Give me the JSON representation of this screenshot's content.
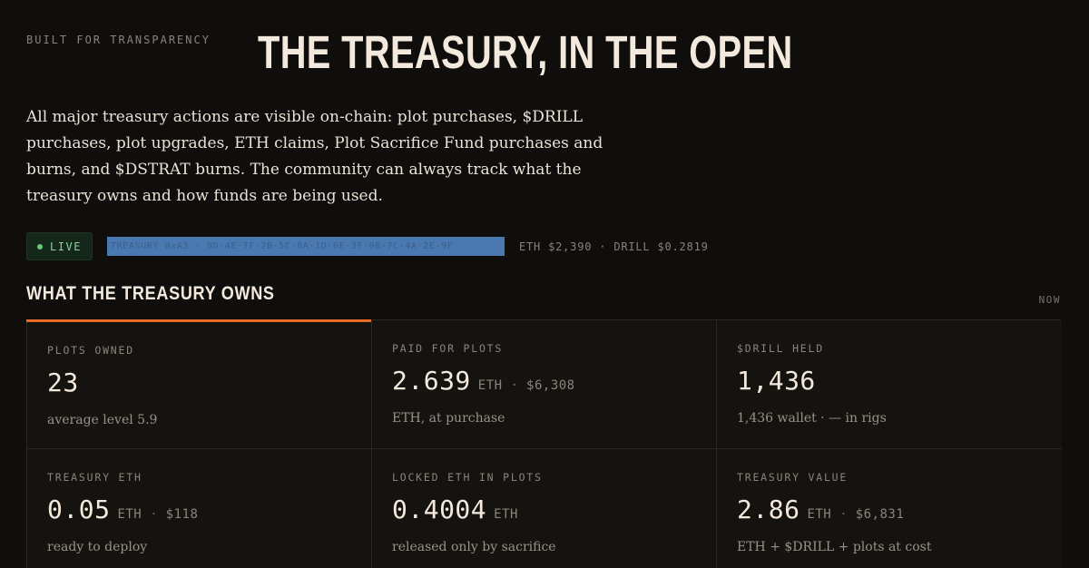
{
  "eyebrow": "BUILT FOR TRANSPARENCY",
  "headline": "THE TREASURY, IN THE OPEN",
  "intro": "All major treasury actions are visible on-chain: plot purchases, $DRILL purchases, plot upgrades, ETH claims, Plot Sacrifice Fund purchases and burns, and $DSTRAT burns. The community can always track what the treasury owns and how funds are being used.",
  "status": {
    "live_label": "LIVE",
    "address_text": "TREASURY 0xA3 · 9D·4E·7F·2B·5C·8A·1D·6E·3F·0B·7C·4A·2E·9F",
    "prices": "ETH $2,390 · DRILL $0.2819"
  },
  "section": {
    "title": "WHAT THE TREASURY OWNS",
    "tag": "NOW"
  },
  "cards": [
    {
      "label": "PLOTS OWNED",
      "value": "23",
      "unit": "",
      "usd": "",
      "note": "average level 5.9"
    },
    {
      "label": "PAID FOR PLOTS",
      "value": "2.639",
      "unit": "ETH",
      "usd": "$6,308",
      "note": "ETH, at purchase"
    },
    {
      "label": "$DRILL HELD",
      "value": "1,436",
      "unit": "",
      "usd": "",
      "note": "1,436 wallet · — in rigs"
    },
    {
      "label": "TREASURY ETH",
      "value": "0.05",
      "unit": "ETH",
      "usd": "$118",
      "note": "ready to deploy"
    },
    {
      "label": "LOCKED ETH IN PLOTS",
      "value": "0.4004",
      "unit": "ETH",
      "usd": "",
      "note": "released only by sacrifice"
    },
    {
      "label": "TREASURY VALUE",
      "value": "2.86",
      "unit": "ETH",
      "usd": "$6,831",
      "note": "ETH + $DRILL + plots at cost"
    }
  ],
  "colors": {
    "background": "#0f0e0d",
    "accent": "#e76a26",
    "live": "#5fce76",
    "address_highlight": "#4a79b1"
  }
}
